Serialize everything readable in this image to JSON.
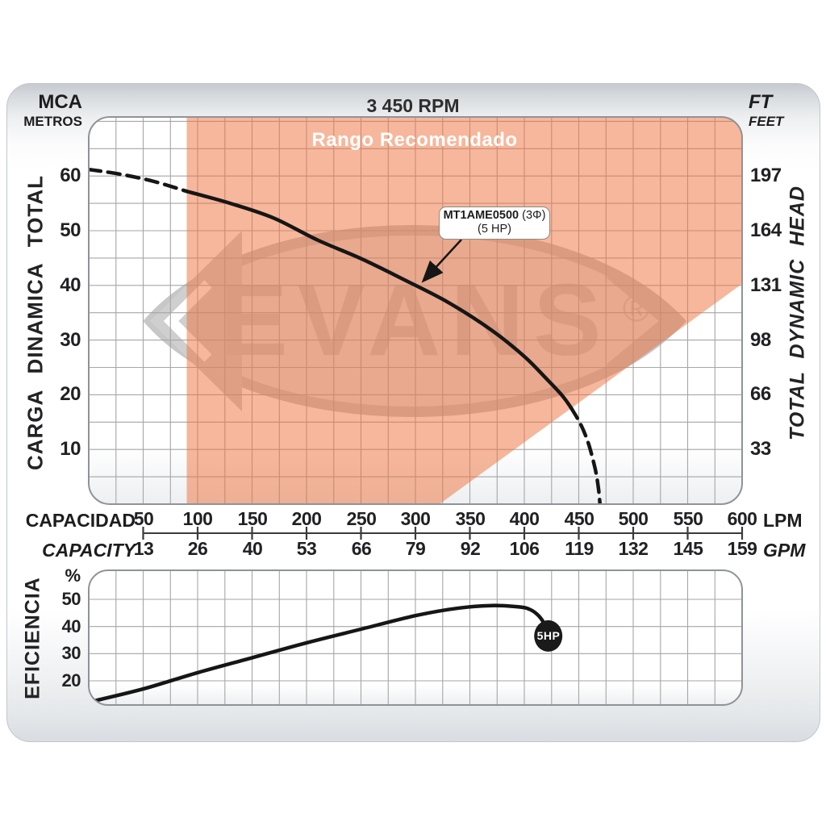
{
  "watermark": {
    "text": "EVANS",
    "registered": "®"
  },
  "head_chart": {
    "title_rpm": "3 450 RPM",
    "left_axis": {
      "unit_line1": "MCA",
      "unit_line2": "METROS",
      "label": "CARGA DINAMICA TOTAL",
      "ticks_m": [
        60,
        50,
        40,
        30,
        20,
        10
      ]
    },
    "right_axis": {
      "unit_line1": "FT",
      "unit_line2": "FEET",
      "label": "TOTAL DYNAMIC HEAD",
      "ticks_ft": [
        197,
        164,
        131,
        98,
        66,
        33
      ]
    },
    "recommended_range_label": "Rango Recomendado",
    "pump_label": {
      "model": "MT1AME0500",
      "phase": "(3Φ)",
      "power": "(5 HP)"
    }
  },
  "capacity_axis": {
    "label_top": "CAPACIDAD",
    "label_bottom": "CAPACITY",
    "unit_top": "LPM",
    "unit_bottom": "GPM",
    "lpm_ticks": [
      50,
      100,
      150,
      200,
      250,
      300,
      350,
      400,
      450,
      500,
      550,
      600
    ],
    "gpm_ticks": [
      13,
      26,
      40,
      53,
      66,
      79,
      92,
      106,
      119,
      132,
      145,
      159
    ]
  },
  "efficiency_chart": {
    "label": "EFICIENCIA",
    "unit": "%",
    "ticks_pct": [
      50,
      40,
      30,
      20
    ],
    "marker_label": "5HP"
  },
  "colors": {
    "recommended_range_fill": "#EE6F39",
    "recommended_range_opacity": 0.5,
    "curve": "#161616",
    "grid": "#a6a6a6",
    "plot_border": "#8f9398",
    "watermark_fill": "#e3e3e3",
    "watermark_stroke": "#c7c7c7",
    "watermark_letters": "#c6c6c6",
    "watermark_wedge": "#cfcfcf",
    "marker_fill": "#1a1a1a",
    "axis_ruler": "#3a3a3a"
  },
  "chart_data": [
    {
      "id": "head-curve-chart",
      "type": "line",
      "title": "3 450 RPM",
      "xlabel": "CAPACIDAD LPM / CAPACITY GPM",
      "ylabel_left": "CARGA DINAMICA TOTAL (MCA METROS)",
      "ylabel_right": "TOTAL DYNAMIC HEAD (FT FEET)",
      "xlim": [
        0,
        600
      ],
      "ylim": [
        0,
        70.8
      ],
      "x_ticks_lpm": [
        50,
        100,
        150,
        200,
        250,
        300,
        350,
        400,
        450,
        500,
        550,
        600
      ],
      "x_ticks_gpm": [
        13,
        26,
        40,
        53,
        66,
        79,
        92,
        106,
        119,
        132,
        145,
        159
      ],
      "y_ticks_m": [
        10,
        20,
        30,
        40,
        50,
        60
      ],
      "y_ticks_ft": [
        33,
        66,
        98,
        131,
        164,
        197
      ],
      "grid": true,
      "series": [
        {
          "name": "MT1AME0500 (3Φ) (5 HP) head curve - dashed low-flow end",
          "style": "dashed",
          "points": [
            [
              0,
              61.2
            ],
            [
              30,
              60.3
            ],
            [
              60,
              59.0
            ],
            [
              90,
              57.2
            ]
          ]
        },
        {
          "name": "MT1AME0500 (3Φ) (5 HP) head curve - solid recommended section",
          "style": "solid",
          "points": [
            [
              90,
              57.2
            ],
            [
              130,
              55.0
            ],
            [
              170,
              52.3
            ],
            [
              210,
              48.3
            ],
            [
              250,
              44.9
            ],
            [
              290,
              41.0
            ],
            [
              330,
              36.9
            ],
            [
              370,
              31.8
            ],
            [
              400,
              27.0
            ],
            [
              420,
              23.0
            ],
            [
              435,
              19.8
            ],
            [
              443,
              17.6
            ]
          ]
        },
        {
          "name": "MT1AME0500 (3Φ) (5 HP) head curve - dashed high-flow end",
          "style": "dashed",
          "points": [
            [
              443,
              17.6
            ],
            [
              452,
              14.5
            ],
            [
              459,
              11.0
            ],
            [
              465,
              6.5
            ],
            [
              468,
              3.0
            ],
            [
              469.5,
              0
            ]
          ]
        }
      ],
      "recommended_region": {
        "label": "Rango Recomendado",
        "polygon_lpm_m": [
          [
            90,
            70.8
          ],
          [
            600,
            70.8
          ],
          [
            600,
            40.3
          ],
          [
            322,
            0
          ],
          [
            90,
            0
          ]
        ]
      }
    },
    {
      "id": "efficiency-chart",
      "type": "line",
      "ylabel": "EFICIENCIA %",
      "xlim": [
        0,
        600
      ],
      "ylim": [
        11,
        60.7
      ],
      "y_ticks_pct": [
        20,
        30,
        40,
        50
      ],
      "grid": true,
      "series": [
        {
          "name": "efficiency curve (5 HP)",
          "style": "solid",
          "points": [
            [
              4,
              12.5
            ],
            [
              50,
              17.0
            ],
            [
              100,
              23.0
            ],
            [
              150,
              28.5
            ],
            [
              200,
              34.0
            ],
            [
              250,
              39.0
            ],
            [
              300,
              44.0
            ],
            [
              340,
              46.8
            ],
            [
              370,
              47.7
            ],
            [
              395,
              47.2
            ],
            [
              405,
              46.3
            ],
            [
              413,
              44.0
            ],
            [
              419,
              40.5
            ],
            [
              422,
              36.8
            ]
          ]
        }
      ],
      "endpoint_marker": {
        "label": "5HP",
        "point_lpm_pct": [
          422,
          36.5
        ]
      }
    }
  ]
}
